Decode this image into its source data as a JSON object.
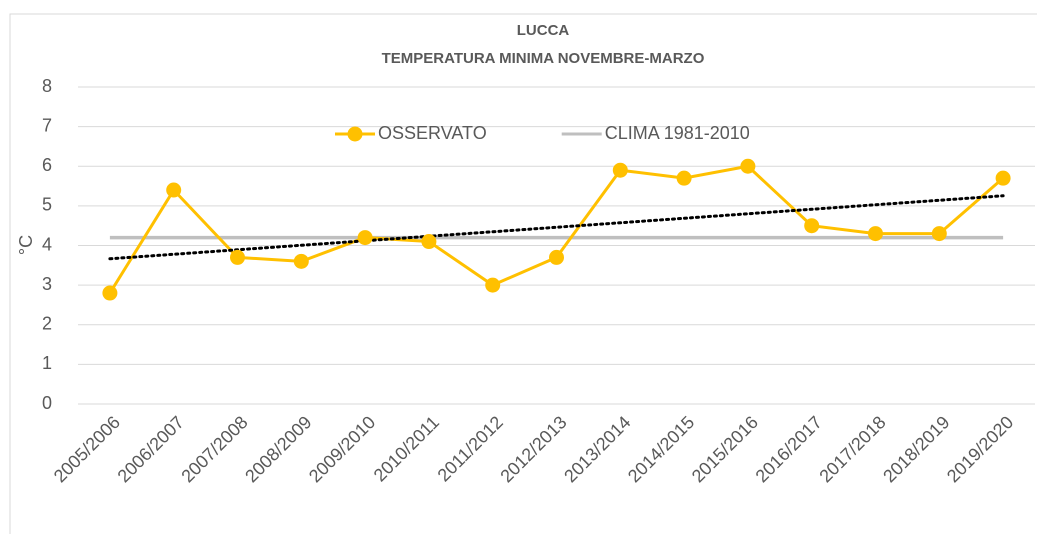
{
  "chart_data": {
    "type": "line",
    "title": "LUCCA",
    "subtitle": "TEMPERATURA MINIMA NOVEMBRE-MARZO",
    "y_label": "°C",
    "categories": [
      "2005/2006",
      "2006/2007",
      "2007/2008",
      "2008/2009",
      "2009/2010",
      "2010/2011",
      "2011/2012",
      "2012/2013",
      "2013/2014",
      "2014/2015",
      "2015/2016",
      "2016/2017",
      "2017/2018",
      "2018/2019",
      "2019/2020"
    ],
    "series": [
      {
        "name": "OSSERVATO",
        "color": "#ffc000",
        "markers": true,
        "trendline": "linear",
        "trendline_color": "#000000",
        "values": [
          2.8,
          5.4,
          3.7,
          3.6,
          4.2,
          4.1,
          3.0,
          3.7,
          5.9,
          5.7,
          6.0,
          4.5,
          4.3,
          4.3,
          5.7
        ]
      },
      {
        "name": "CLIMA 1981-2010",
        "color": "#bfbfbf",
        "markers": false,
        "values": [
          4.2,
          4.2,
          4.2,
          4.2,
          4.2,
          4.2,
          4.2,
          4.2,
          4.2,
          4.2,
          4.2,
          4.2,
          4.2,
          4.2,
          4.2
        ]
      }
    ],
    "ylim": [
      0,
      8
    ],
    "yticks": [
      0,
      1,
      2,
      3,
      4,
      5,
      6,
      7,
      8
    ],
    "grid": true,
    "legend": "top"
  }
}
